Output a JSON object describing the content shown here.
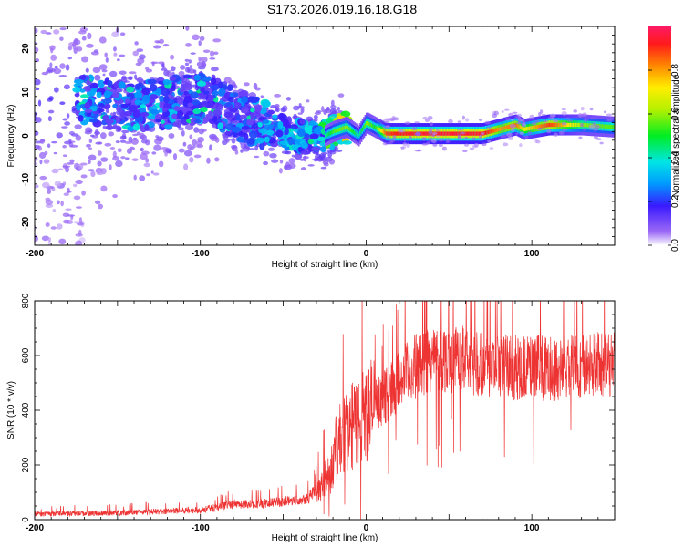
{
  "title": "S173.2026.019.16.18.G18",
  "chart_data": [
    {
      "type": "heatmap",
      "xlabel": "Height of straight line (km)",
      "ylabel": "Frequency (Hz)",
      "xlim": [
        -200,
        150
      ],
      "ylim": [
        -25,
        25
      ],
      "x_ticks": [
        -200,
        -100,
        0,
        100
      ],
      "y_ticks": [
        -20,
        -10,
        0,
        10,
        20
      ],
      "colorbar": {
        "label": "Normalized spectral amplitude",
        "range": [
          0,
          1
        ],
        "ticks": [
          0.0,
          0.2,
          0.4,
          0.6,
          0.8
        ],
        "tick_labels": [
          "0.0",
          "0.2",
          "0.4",
          "0.6",
          "0.8"
        ]
      },
      "ridge": {
        "x": [
          -170,
          -150,
          -130,
          -110,
          -95,
          -80,
          -65,
          -50,
          -40,
          -30,
          -20,
          -12,
          -5,
          0,
          5,
          12,
          30,
          50,
          70,
          80,
          90,
          95,
          110,
          120,
          130,
          150
        ],
        "y": [
          8,
          7,
          7,
          8,
          9,
          5,
          3,
          1,
          0,
          -1,
          1,
          2,
          0,
          3,
          2,
          0.5,
          0.5,
          0.5,
          0.5,
          1.5,
          2.5,
          1.5,
          2.5,
          2.5,
          2.5,
          2.0
        ],
        "amplitude": [
          0.25,
          0.22,
          0.25,
          0.22,
          0.2,
          0.22,
          0.25,
          0.3,
          0.3,
          0.3,
          0.55,
          0.6,
          0.4,
          0.6,
          0.5,
          0.9,
          0.95,
          0.95,
          0.95,
          0.8,
          0.85,
          0.7,
          0.9,
          0.75,
          0.6,
          0.55
        ]
      }
    },
    {
      "type": "line",
      "xlabel": "Height of straight line (km)",
      "ylabel": "SNR (10 * v/v)",
      "xlim": [
        -200,
        150
      ],
      "ylim": [
        0,
        800
      ],
      "x_ticks": [
        -200,
        -100,
        0,
        100
      ],
      "y_ticks": [
        0,
        200,
        400,
        600,
        800
      ],
      "series_color": "#ee3333",
      "envelope": {
        "x": [
          -200,
          -150,
          -100,
          -80,
          -60,
          -45,
          -35,
          -28,
          -22,
          -18,
          -15,
          -10,
          -5,
          0,
          10,
          20,
          30,
          40,
          50,
          60,
          70,
          80,
          90,
          100,
          110,
          120,
          130,
          140,
          150
        ],
        "y": [
          20,
          25,
          35,
          55,
          60,
          70,
          80,
          120,
          170,
          260,
          300,
          330,
          360,
          390,
          440,
          510,
          560,
          590,
          590,
          580,
          575,
          560,
          555,
          560,
          550,
          555,
          560,
          565,
          570
        ]
      }
    }
  ]
}
